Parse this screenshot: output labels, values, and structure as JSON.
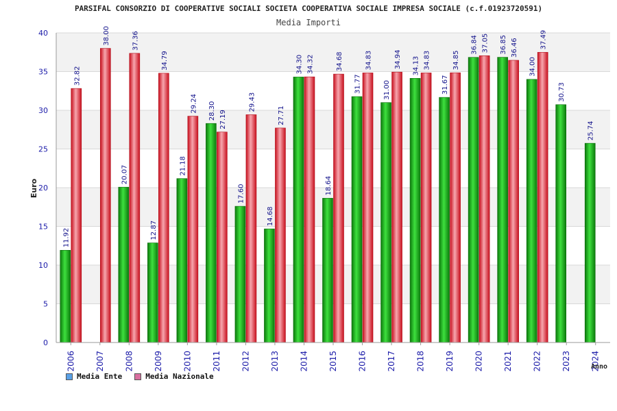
{
  "chart_data": {
    "type": "bar",
    "title": "PARSIFAL CONSORZIO DI COOPERATIVE SOCIALI SOCIETA COOPERATIVA SOCIALE IMPRESA SOCIALE (c.f.01923720591)",
    "subtitle": "Media Importi",
    "ylabel": "Euro",
    "xlabel": "Anno",
    "ylim": [
      0,
      40
    ],
    "yticks": [
      0,
      5,
      10,
      15,
      20,
      25,
      30,
      35,
      40
    ],
    "grid": true,
    "legend_position": "bottom-left",
    "categories": [
      "2006",
      "2007",
      "2008",
      "2009",
      "2010",
      "2011",
      "2012",
      "2013",
      "2014",
      "2015",
      "2016",
      "2017",
      "2018",
      "2019",
      "2020",
      "2021",
      "2022",
      "2023",
      "2024"
    ],
    "series": [
      {
        "name": "Media Ente",
        "color": "#22b022",
        "legend_color": "#5aa0e6",
        "values": [
          11.92,
          null,
          20.07,
          12.87,
          21.18,
          28.3,
          17.6,
          14.68,
          34.3,
          18.64,
          31.77,
          31.0,
          34.13,
          31.67,
          36.84,
          36.85,
          34.0,
          30.73,
          25.74
        ],
        "labels": [
          "11.92",
          "",
          "20.07",
          "12.87",
          "21.18",
          "28.30",
          "17.60",
          "14.68",
          "34.30",
          "18.64",
          "31.77",
          "31.00",
          "34.13",
          "31.67",
          "36.84",
          "36.85",
          "34.00",
          "30.73",
          "25.74"
        ]
      },
      {
        "name": "Media Nazionale",
        "color": "#e02a3a",
        "legend_color": "#d970a0",
        "values": [
          32.82,
          38.0,
          37.36,
          34.79,
          29.24,
          27.19,
          29.43,
          27.71,
          34.32,
          34.68,
          34.83,
          34.94,
          34.83,
          34.85,
          37.05,
          36.46,
          37.49,
          null,
          null
        ],
        "labels": [
          "32.82",
          "38.00",
          "37.36",
          "34.79",
          "29.24",
          "27.19",
          "29.43",
          "27.71",
          "34.32",
          "34.68",
          "34.83",
          "34.94",
          "34.83",
          "34.85",
          "37.05",
          "36.46",
          "37.49",
          "",
          ""
        ]
      }
    ]
  }
}
